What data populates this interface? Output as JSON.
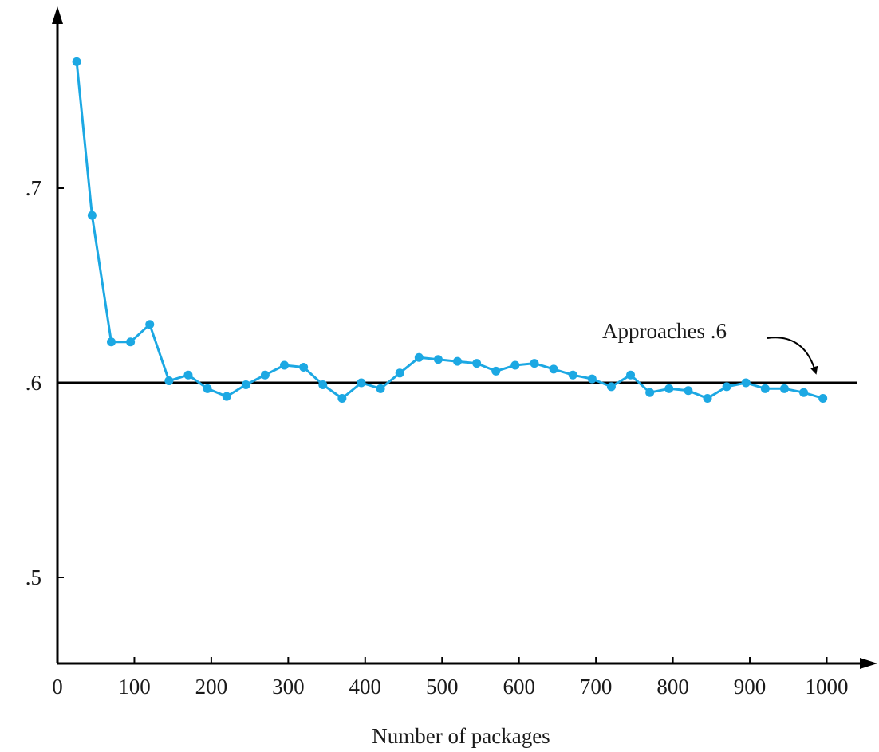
{
  "chart_data": {
    "type": "line",
    "title": "",
    "xlabel": "Number of packages",
    "ylabel": "",
    "xlim": [
      0,
      1050
    ],
    "ylim": [
      0.45,
      0.78
    ],
    "x_ticks": [
      0,
      100,
      200,
      300,
      400,
      500,
      600,
      700,
      800,
      900,
      1000
    ],
    "x_tick_labels": [
      "0",
      "100",
      "200",
      "300",
      "400",
      "500",
      "600",
      "700",
      "800",
      "900",
      "1000"
    ],
    "y_ticks": [
      0.5,
      0.6,
      0.7
    ],
    "y_tick_labels": [
      ".5",
      ".6",
      ".7"
    ],
    "grid": false,
    "reference_line": {
      "y": 0.6
    },
    "annotation": {
      "text": "Approaches .6",
      "target_x": 985,
      "target_y": 0.6
    },
    "colors": {
      "series": "#1ca8e3",
      "axis": "#000000",
      "reference": "#000000"
    },
    "series": [
      {
        "x": [
          25,
          45,
          70,
          95,
          120,
          145,
          170,
          195,
          220,
          245,
          270,
          295,
          320,
          345,
          370,
          395,
          420,
          445,
          470,
          495,
          520,
          545,
          570,
          595,
          620,
          645,
          670,
          695,
          720,
          745,
          770,
          795,
          820,
          845,
          870,
          895,
          920,
          945,
          970,
          995
        ],
        "y": [
          0.765,
          0.686,
          0.621,
          0.621,
          0.63,
          0.601,
          0.604,
          0.597,
          0.593,
          0.599,
          0.604,
          0.609,
          0.608,
          0.599,
          0.592,
          0.6,
          0.597,
          0.605,
          0.613,
          0.612,
          0.611,
          0.61,
          0.606,
          0.609,
          0.61,
          0.607,
          0.604,
          0.602,
          0.598,
          0.604,
          0.595,
          0.597,
          0.596,
          0.592,
          0.598,
          0.6,
          0.597,
          0.597,
          0.595,
          0.592
        ]
      }
    ]
  }
}
